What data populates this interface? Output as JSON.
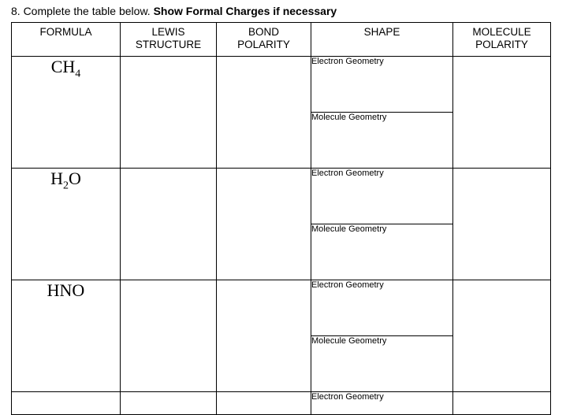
{
  "instruction": {
    "prefix": "8. Complete the table below. ",
    "bold": "Show Formal Charges if necessary"
  },
  "headers": {
    "formula": "FORMULA",
    "lewis_line1": "LEWIS",
    "lewis_line2": "STRUCTURE",
    "bond_line1": "BOND",
    "bond_line2": "POLARITY",
    "shape": "SHAPE",
    "molecule_line1": "MOLECULE",
    "molecule_line2": "POLARITY"
  },
  "shape_labels": {
    "electron": "Electron Geometry",
    "molecule": "Molecule Geometry"
  },
  "rows": [
    {
      "formula_html": "CH<sub>4</sub>",
      "formula_plain": "CH4"
    },
    {
      "formula_html": "H<sub>2</sub>O",
      "formula_plain": "H2O"
    },
    {
      "formula_html": "HNO",
      "formula_plain": "HNO"
    }
  ]
}
